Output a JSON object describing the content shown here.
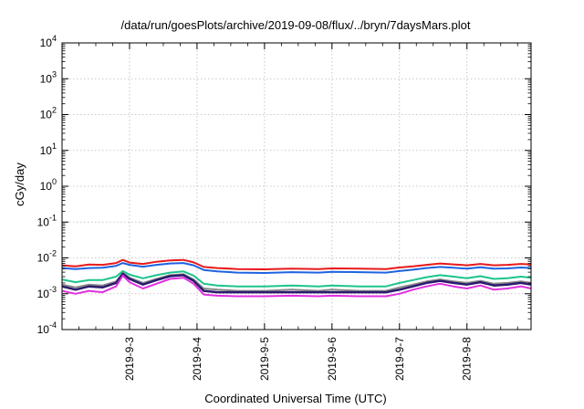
{
  "chart_data": {
    "type": "line",
    "title": "/data/run/goesPlots/archive/2019-09-08/flux/../bryn/7daysMars.plot",
    "xlabel": "Coordinated Universal Time (UTC)",
    "ylabel": "cGy/day",
    "yscale": "log",
    "ylim": [
      0.0001,
      10000
    ],
    "xlim": [
      2.0,
      8.95
    ],
    "grid": true,
    "y_ticks": [
      {
        "base": "10",
        "exp": "4"
      },
      {
        "base": "10",
        "exp": "3"
      },
      {
        "base": "10",
        "exp": "2"
      },
      {
        "base": "10",
        "exp": "1"
      },
      {
        "base": "10",
        "exp": "0"
      },
      {
        "base": "10",
        "exp": "-1"
      },
      {
        "base": "10",
        "exp": "-2"
      },
      {
        "base": "10",
        "exp": "-3"
      },
      {
        "base": "10",
        "exp": "-4"
      }
    ],
    "x_ticks": [
      {
        "label": "2019-9-3",
        "x": 3
      },
      {
        "label": "2019-9-4",
        "x": 4
      },
      {
        "label": "2019-9-5",
        "x": 5
      },
      {
        "label": "2019-9-6",
        "x": 6
      },
      {
        "label": "2019-9-7",
        "x": 7
      },
      {
        "label": "2019-9-8",
        "x": 8
      }
    ],
    "x": [
      2.0,
      2.2,
      2.4,
      2.6,
      2.8,
      2.9,
      3.0,
      3.2,
      3.4,
      3.6,
      3.8,
      3.95,
      4.1,
      4.3,
      4.6,
      5.0,
      5.4,
      5.8,
      6.0,
      6.4,
      6.8,
      7.0,
      7.2,
      7.4,
      7.6,
      7.8,
      8.0,
      8.2,
      8.4,
      8.6,
      8.8,
      8.95
    ],
    "series": [
      {
        "color": "#e8191b",
        "width": 2,
        "values": [
          0.0062,
          0.0058,
          0.0065,
          0.0064,
          0.0072,
          0.0088,
          0.0074,
          0.0068,
          0.0078,
          0.0085,
          0.0088,
          0.0075,
          0.0056,
          0.0052,
          0.0049,
          0.0048,
          0.005,
          0.0049,
          0.0051,
          0.005,
          0.0049,
          0.0054,
          0.0058,
          0.0064,
          0.007,
          0.0066,
          0.0062,
          0.0068,
          0.0062,
          0.0064,
          0.0068,
          0.0066
        ]
      },
      {
        "color": "#1e63e0",
        "width": 2,
        "values": [
          0.0052,
          0.0049,
          0.0052,
          0.0053,
          0.006,
          0.0072,
          0.0064,
          0.0057,
          0.0064,
          0.007,
          0.0072,
          0.0062,
          0.0046,
          0.0042,
          0.0039,
          0.0038,
          0.004,
          0.0039,
          0.0041,
          0.004,
          0.0039,
          0.0043,
          0.0047,
          0.0052,
          0.0056,
          0.0053,
          0.005,
          0.0055,
          0.005,
          0.0051,
          0.0054,
          0.0052
        ]
      },
      {
        "color": "#1cc48c",
        "width": 2,
        "values": [
          0.0025,
          0.0021,
          0.0024,
          0.0024,
          0.003,
          0.0043,
          0.0034,
          0.0027,
          0.0033,
          0.0039,
          0.0042,
          0.0032,
          0.0019,
          0.0017,
          0.0016,
          0.0016,
          0.0017,
          0.0016,
          0.0017,
          0.0016,
          0.0016,
          0.002,
          0.0024,
          0.0029,
          0.0033,
          0.003,
          0.0027,
          0.0031,
          0.0026,
          0.0027,
          0.003,
          0.0028
        ]
      },
      {
        "color": "#888888",
        "width": 2,
        "values": [
          0.0018,
          0.0015,
          0.0018,
          0.0017,
          0.0022,
          0.0038,
          0.0028,
          0.002,
          0.0026,
          0.0033,
          0.0035,
          0.0025,
          0.0014,
          0.0013,
          0.0012,
          0.0012,
          0.0013,
          0.0012,
          0.0013,
          0.0012,
          0.0012,
          0.0015,
          0.0018,
          0.0022,
          0.0025,
          0.0022,
          0.002,
          0.0023,
          0.0019,
          0.002,
          0.0022,
          0.002
        ]
      },
      {
        "color": "#2b1a6e",
        "width": 2.5,
        "values": [
          0.0016,
          0.0013,
          0.0016,
          0.0015,
          0.002,
          0.0036,
          0.0026,
          0.0018,
          0.0024,
          0.0031,
          0.0033,
          0.0023,
          0.0012,
          0.0011,
          0.0011,
          0.0011,
          0.0011,
          0.0011,
          0.0011,
          0.0011,
          0.0011,
          0.0013,
          0.0016,
          0.002,
          0.0023,
          0.002,
          0.0018,
          0.0021,
          0.0017,
          0.0018,
          0.002,
          0.0018
        ]
      },
      {
        "color": "#e030e0",
        "width": 2,
        "values": [
          0.0012,
          0.001,
          0.0012,
          0.0011,
          0.0016,
          0.0032,
          0.0021,
          0.0014,
          0.0019,
          0.0026,
          0.0028,
          0.0019,
          0.00095,
          0.00088,
          0.00085,
          0.00085,
          0.00088,
          0.00085,
          0.00088,
          0.00085,
          0.00085,
          0.001,
          0.0013,
          0.0016,
          0.0019,
          0.0016,
          0.0014,
          0.0017,
          0.0013,
          0.0014,
          0.0016,
          0.0014
        ]
      }
    ]
  }
}
